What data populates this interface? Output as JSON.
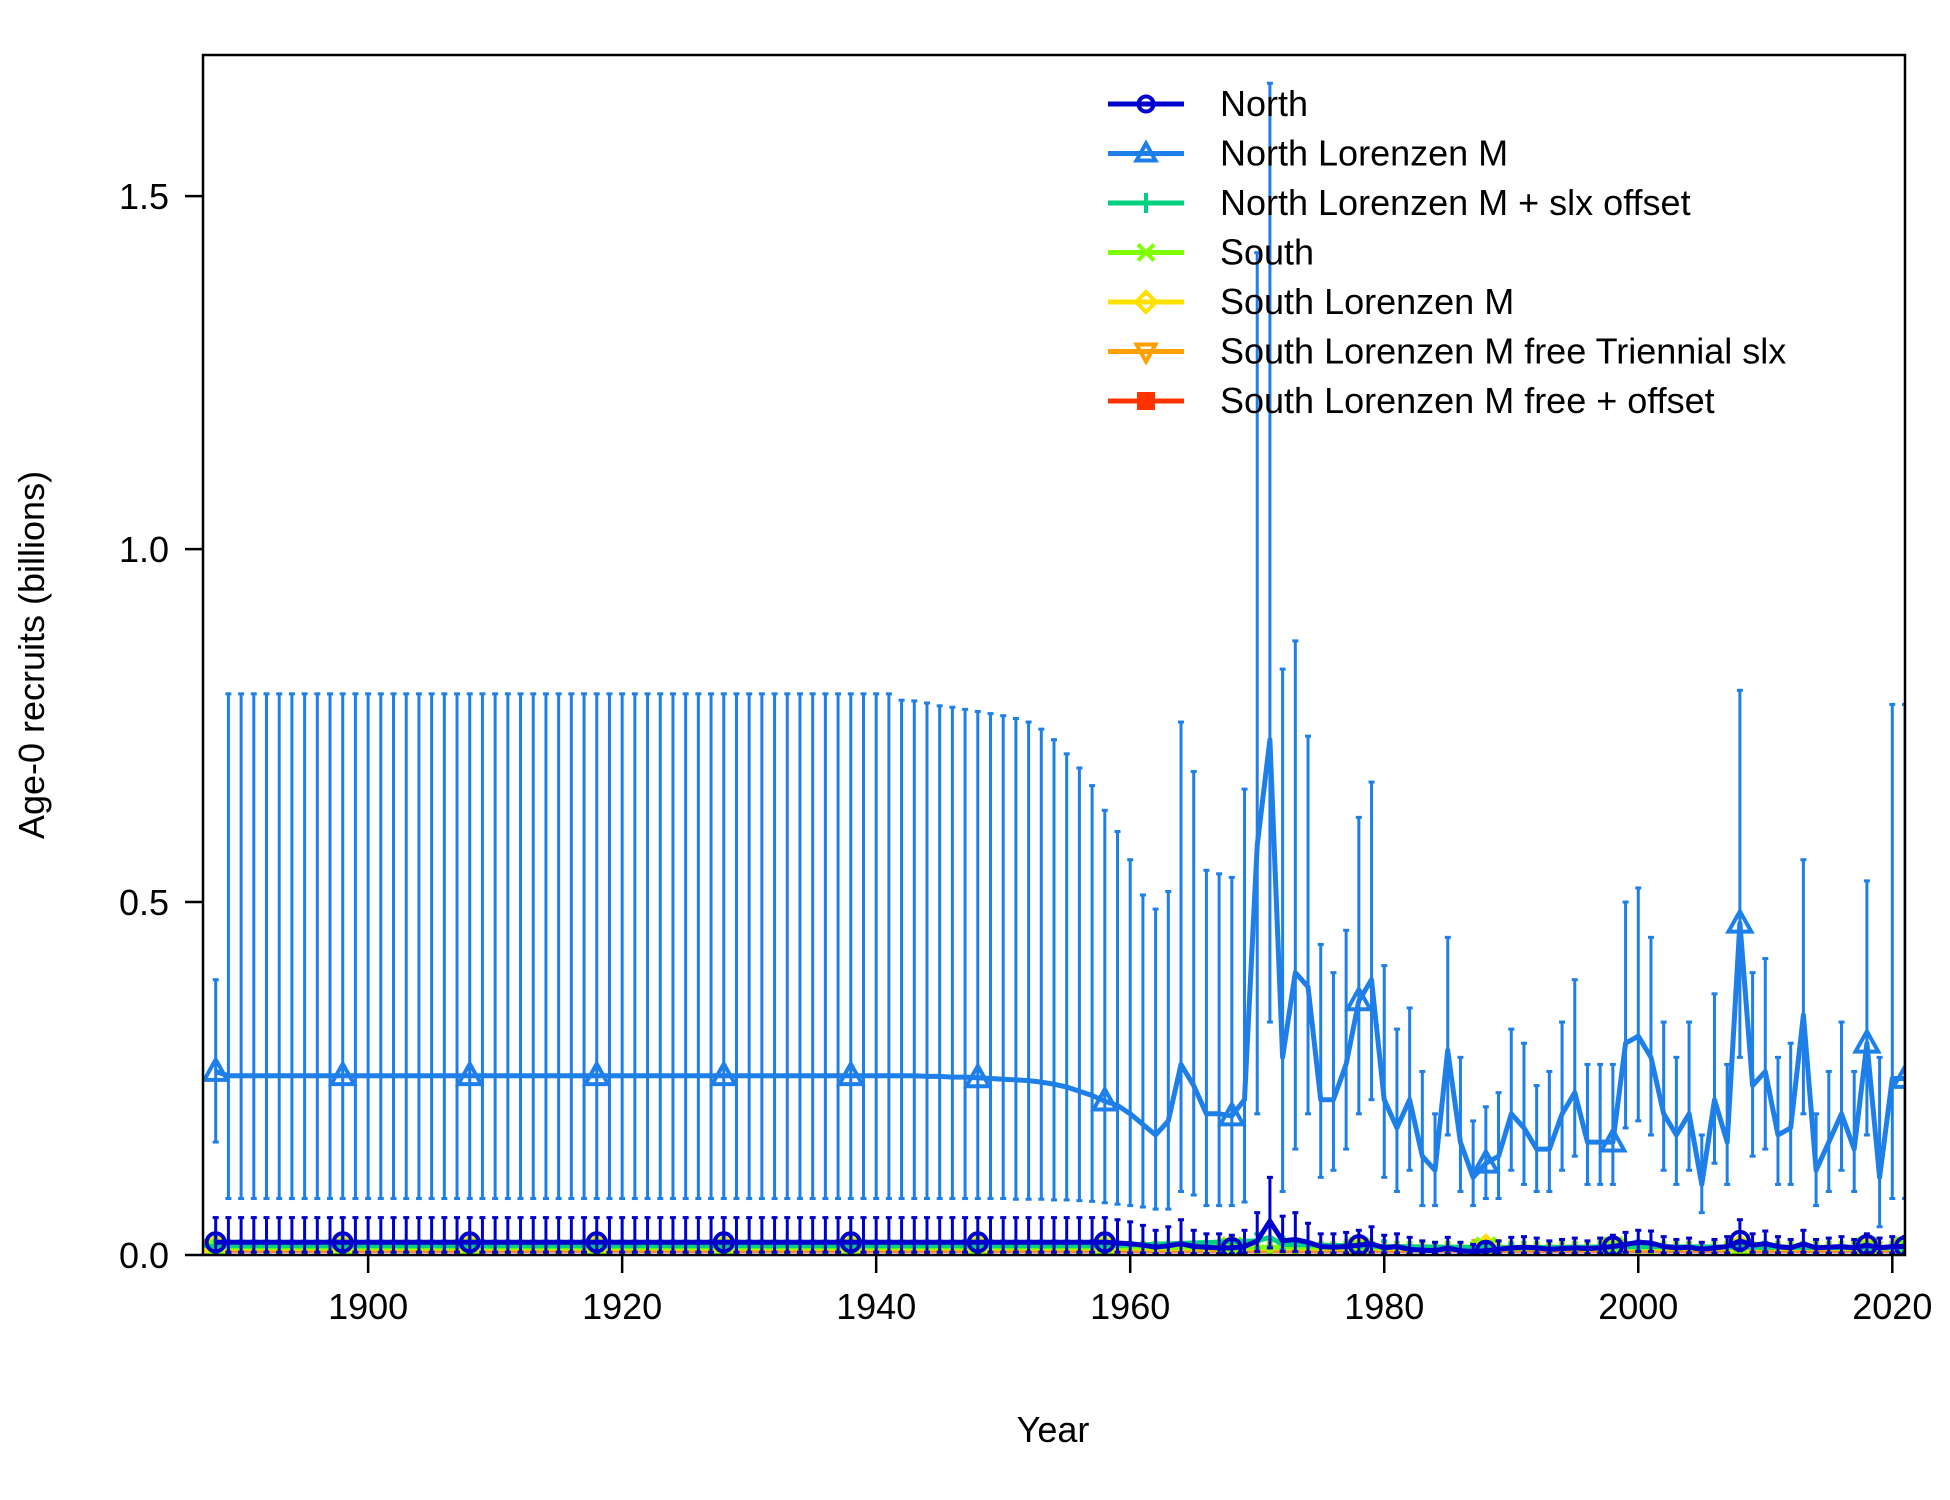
{
  "chart_data": {
    "type": "line",
    "xlabel": "Year",
    "ylabel": "Age-0 recruits (billions)",
    "xlim": [
      1887,
      2021
    ],
    "ylim": [
      0,
      1.7
    ],
    "x_ticks": [
      1900,
      1920,
      1940,
      1960,
      1980,
      2000,
      2020
    ],
    "y_ticks": [
      0.0,
      0.5,
      1.0,
      1.5
    ],
    "x_tick_labels": [
      "1900",
      "1920",
      "1940",
      "1960",
      "1980",
      "2000",
      "2020"
    ],
    "y_tick_labels": [
      "0.0",
      "0.5",
      "1.0",
      "1.5"
    ],
    "grid": false,
    "legend_position": "top-right",
    "error_bars": true,
    "series": [
      {
        "name": "North",
        "color": "#0000CD",
        "marker": "circle",
        "marker_every_years": 10,
        "baseline": {
          "start": 1888,
          "end": 1958,
          "value": 0.018,
          "lower": 0.004,
          "upper": 0.053
        },
        "points": [
          [
            1959,
            0.017,
            0.004,
            0.05
          ],
          [
            1960,
            0.016,
            0.003,
            0.047
          ],
          [
            1961,
            0.014,
            0.003,
            0.042
          ],
          [
            1962,
            0.011,
            0.002,
            0.035
          ],
          [
            1963,
            0.013,
            0.002,
            0.04
          ],
          [
            1964,
            0.016,
            0.003,
            0.05
          ],
          [
            1965,
            0.012,
            0.002,
            0.035
          ],
          [
            1966,
            0.011,
            0.002,
            0.03
          ],
          [
            1967,
            0.01,
            0.002,
            0.03
          ],
          [
            1968,
            0.01,
            0.002,
            0.028
          ],
          [
            1969,
            0.012,
            0.003,
            0.035
          ],
          [
            1970,
            0.02,
            0.005,
            0.06
          ],
          [
            1971,
            0.048,
            0.01,
            0.11
          ],
          [
            1972,
            0.02,
            0.005,
            0.055
          ],
          [
            1973,
            0.022,
            0.005,
            0.06
          ],
          [
            1974,
            0.018,
            0.004,
            0.045
          ],
          [
            1975,
            0.012,
            0.003,
            0.03
          ],
          [
            1976,
            0.011,
            0.003,
            0.03
          ],
          [
            1977,
            0.012,
            0.003,
            0.032
          ],
          [
            1978,
            0.014,
            0.004,
            0.035
          ],
          [
            1979,
            0.016,
            0.004,
            0.04
          ],
          [
            1980,
            0.01,
            0.003,
            0.028
          ],
          [
            1981,
            0.012,
            0.003,
            0.03
          ],
          [
            1982,
            0.008,
            0.002,
            0.025
          ],
          [
            1983,
            0.007,
            0.002,
            0.02
          ],
          [
            1984,
            0.006,
            0.002,
            0.018
          ],
          [
            1985,
            0.01,
            0.003,
            0.025
          ],
          [
            1986,
            0.006,
            0.002,
            0.018
          ],
          [
            1987,
            0.005,
            0.002,
            0.015
          ],
          [
            1988,
            0.006,
            0.002,
            0.017
          ],
          [
            1989,
            0.008,
            0.002,
            0.02
          ],
          [
            1990,
            0.01,
            0.003,
            0.025
          ],
          [
            1991,
            0.011,
            0.003,
            0.026
          ],
          [
            1992,
            0.01,
            0.003,
            0.024
          ],
          [
            1993,
            0.008,
            0.002,
            0.02
          ],
          [
            1994,
            0.009,
            0.002,
            0.022
          ],
          [
            1995,
            0.01,
            0.003,
            0.024
          ],
          [
            1996,
            0.009,
            0.002,
            0.02
          ],
          [
            1997,
            0.01,
            0.003,
            0.024
          ],
          [
            1998,
            0.012,
            0.003,
            0.028
          ],
          [
            1999,
            0.015,
            0.004,
            0.032
          ],
          [
            2000,
            0.018,
            0.005,
            0.035
          ],
          [
            2001,
            0.017,
            0.005,
            0.034
          ],
          [
            2002,
            0.012,
            0.003,
            0.026
          ],
          [
            2003,
            0.01,
            0.003,
            0.022
          ],
          [
            2004,
            0.011,
            0.003,
            0.024
          ],
          [
            2005,
            0.008,
            0.002,
            0.018
          ],
          [
            2006,
            0.01,
            0.003,
            0.022
          ],
          [
            2007,
            0.012,
            0.003,
            0.026
          ],
          [
            2008,
            0.02,
            0.006,
            0.05
          ],
          [
            2009,
            0.014,
            0.004,
            0.03
          ],
          [
            2010,
            0.016,
            0.004,
            0.034
          ],
          [
            2011,
            0.012,
            0.003,
            0.026
          ],
          [
            2012,
            0.01,
            0.003,
            0.022
          ],
          [
            2013,
            0.016,
            0.004,
            0.035
          ],
          [
            2014,
            0.01,
            0.003,
            0.022
          ],
          [
            2015,
            0.011,
            0.003,
            0.024
          ],
          [
            2016,
            0.012,
            0.003,
            0.026
          ],
          [
            2017,
            0.01,
            0.003,
            0.022
          ],
          [
            2018,
            0.014,
            0.004,
            0.03
          ],
          [
            2019,
            0.01,
            0.003,
            0.024
          ],
          [
            2020,
            0.012,
            0.003,
            0.026
          ],
          [
            2021,
            0.012,
            0.003,
            0.026
          ]
        ]
      },
      {
        "name": "North Lorenzen M",
        "color": "#1E7FE8",
        "marker": "triangle",
        "marker_every_years": 10,
        "baseline": {
          "start": 1888,
          "end": 1941,
          "value": 0.254,
          "lower": 0.08,
          "upper": 0.795
        },
        "points": [
          [
            1888,
            0.26,
            0.16,
            0.39
          ],
          [
            1942,
            0.254,
            0.08,
            0.786
          ],
          [
            1943,
            0.254,
            0.08,
            0.785
          ],
          [
            1944,
            0.253,
            0.08,
            0.782
          ],
          [
            1945,
            0.253,
            0.08,
            0.778
          ],
          [
            1946,
            0.252,
            0.08,
            0.776
          ],
          [
            1947,
            0.252,
            0.08,
            0.773
          ],
          [
            1948,
            0.251,
            0.08,
            0.77
          ],
          [
            1949,
            0.25,
            0.08,
            0.767
          ],
          [
            1950,
            0.249,
            0.08,
            0.764
          ],
          [
            1951,
            0.248,
            0.079,
            0.76
          ],
          [
            1952,
            0.247,
            0.079,
            0.755
          ],
          [
            1953,
            0.245,
            0.079,
            0.745
          ],
          [
            1954,
            0.242,
            0.078,
            0.73
          ],
          [
            1955,
            0.238,
            0.078,
            0.71
          ],
          [
            1956,
            0.232,
            0.077,
            0.69
          ],
          [
            1957,
            0.226,
            0.076,
            0.665
          ],
          [
            1958,
            0.218,
            0.074,
            0.63
          ],
          [
            1959,
            0.212,
            0.072,
            0.6
          ],
          [
            1960,
            0.2,
            0.07,
            0.56
          ],
          [
            1961,
            0.185,
            0.068,
            0.51
          ],
          [
            1962,
            0.17,
            0.065,
            0.49
          ],
          [
            1963,
            0.19,
            0.065,
            0.515
          ],
          [
            1964,
            0.27,
            0.09,
            0.755
          ],
          [
            1965,
            0.24,
            0.085,
            0.685
          ],
          [
            1966,
            0.2,
            0.07,
            0.545
          ],
          [
            1967,
            0.2,
            0.07,
            0.54
          ],
          [
            1968,
            0.197,
            0.07,
            0.535
          ],
          [
            1969,
            0.22,
            0.075,
            0.66
          ],
          [
            1970,
            0.58,
            0.2,
            1.42
          ],
          [
            1971,
            0.73,
            0.33,
            1.66
          ],
          [
            1972,
            0.28,
            0.09,
            0.83
          ],
          [
            1973,
            0.4,
            0.15,
            0.87
          ],
          [
            1974,
            0.38,
            0.2,
            0.735
          ],
          [
            1975,
            0.22,
            0.11,
            0.44
          ],
          [
            1976,
            0.22,
            0.12,
            0.4
          ],
          [
            1977,
            0.27,
            0.15,
            0.46
          ],
          [
            1978,
            0.36,
            0.2,
            0.62
          ],
          [
            1979,
            0.39,
            0.22,
            0.67
          ],
          [
            1980,
            0.22,
            0.11,
            0.41
          ],
          [
            1981,
            0.18,
            0.09,
            0.32
          ],
          [
            1982,
            0.22,
            0.12,
            0.35
          ],
          [
            1983,
            0.14,
            0.07,
            0.26
          ],
          [
            1984,
            0.12,
            0.07,
            0.2
          ],
          [
            1985,
            0.29,
            0.17,
            0.45
          ],
          [
            1986,
            0.16,
            0.09,
            0.28
          ],
          [
            1987,
            0.11,
            0.07,
            0.19
          ],
          [
            1988,
            0.13,
            0.08,
            0.21
          ],
          [
            1989,
            0.14,
            0.08,
            0.23
          ],
          [
            1990,
            0.2,
            0.12,
            0.32
          ],
          [
            1991,
            0.18,
            0.1,
            0.3
          ],
          [
            1992,
            0.15,
            0.09,
            0.24
          ],
          [
            1993,
            0.15,
            0.09,
            0.26
          ],
          [
            1994,
            0.2,
            0.12,
            0.33
          ],
          [
            1995,
            0.23,
            0.14,
            0.39
          ],
          [
            1996,
            0.16,
            0.1,
            0.27
          ],
          [
            1997,
            0.16,
            0.1,
            0.27
          ],
          [
            1998,
            0.16,
            0.1,
            0.27
          ],
          [
            1999,
            0.3,
            0.18,
            0.5
          ],
          [
            2000,
            0.31,
            0.19,
            0.52
          ],
          [
            2001,
            0.28,
            0.17,
            0.45
          ],
          [
            2002,
            0.2,
            0.12,
            0.33
          ],
          [
            2003,
            0.17,
            0.1,
            0.28
          ],
          [
            2004,
            0.2,
            0.12,
            0.33
          ],
          [
            2005,
            0.1,
            0.06,
            0.17
          ],
          [
            2006,
            0.22,
            0.13,
            0.37
          ],
          [
            2007,
            0.16,
            0.1,
            0.27
          ],
          [
            2008,
            0.47,
            0.28,
            0.8
          ],
          [
            2009,
            0.24,
            0.14,
            0.4
          ],
          [
            2010,
            0.26,
            0.15,
            0.42
          ],
          [
            2011,
            0.17,
            0.1,
            0.28
          ],
          [
            2012,
            0.18,
            0.1,
            0.3
          ],
          [
            2013,
            0.34,
            0.2,
            0.56
          ],
          [
            2014,
            0.12,
            0.07,
            0.2
          ],
          [
            2015,
            0.16,
            0.09,
            0.26
          ],
          [
            2016,
            0.2,
            0.12,
            0.33
          ],
          [
            2017,
            0.15,
            0.09,
            0.26
          ],
          [
            2018,
            0.3,
            0.17,
            0.53
          ],
          [
            2019,
            0.11,
            0.04,
            0.28
          ],
          [
            2020,
            0.25,
            0.08,
            0.78
          ],
          [
            2021,
            0.25,
            0.08,
            0.78
          ]
        ]
      },
      {
        "name": "North Lorenzen M + slx offset",
        "color": "#00D080",
        "marker": "plus",
        "marker_every_years": 10,
        "baseline": {
          "start": 1888,
          "end": 1958,
          "value": 0.013,
          "lower": 0.004,
          "upper": 0.02
        },
        "points": [
          [
            1970,
            0.02,
            0.01,
            0.03
          ],
          [
            1971,
            0.025,
            0.012,
            0.04
          ],
          [
            1972,
            0.015,
            0.008,
            0.025
          ],
          [
            1980,
            0.012,
            0.006,
            0.02
          ],
          [
            1990,
            0.01,
            0.005,
            0.016
          ],
          [
            2000,
            0.012,
            0.006,
            0.02
          ],
          [
            2010,
            0.011,
            0.006,
            0.018
          ],
          [
            2021,
            0.01,
            0.005,
            0.016
          ]
        ]
      },
      {
        "name": "South",
        "color": "#7FFF00",
        "marker": "x",
        "marker_every_years": 10,
        "baseline": {
          "start": 1888,
          "end": 2021,
          "value": 0.011,
          "lower": 0.004,
          "upper": 0.018
        },
        "points": []
      },
      {
        "name": "South Lorenzen M",
        "color": "#FFE000",
        "marker": "diamond",
        "marker_every_years": 10,
        "baseline": {
          "start": 1888,
          "end": 2021,
          "value": 0.01,
          "lower": 0.004,
          "upper": 0.017
        },
        "points": []
      },
      {
        "name": "South Lorenzen M free Triennial slx",
        "color": "#FF9F00",
        "marker": "triangle-down",
        "marker_every_years": 10,
        "baseline": {
          "start": 1888,
          "end": 2021,
          "value": 0.008,
          "lower": 0.003,
          "upper": 0.014
        },
        "points": []
      },
      {
        "name": "South Lorenzen M free + offset",
        "color": "#FF3300",
        "marker": "square",
        "marker_every_years": 10,
        "baseline": {
          "start": 1888,
          "end": 2021,
          "value": 0.007,
          "lower": 0.003,
          "upper": 0.012
        },
        "points": []
      }
    ]
  }
}
